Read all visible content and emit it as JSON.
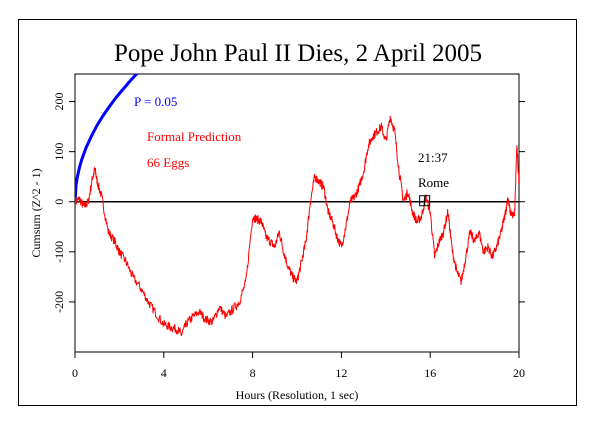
{
  "chart_data": {
    "type": "line",
    "title": "Pope John Paul II Dies, 2 April 2005",
    "xlabel": "Hours (Resolution, 1 sec)",
    "ylabel": "Cumsum (Z^2 - 1)",
    "xlim": [
      0,
      20
    ],
    "ylim": [
      -300,
      255
    ],
    "xticks": [
      "0",
      "4",
      "8",
      "12",
      "16",
      "20"
    ],
    "yticks": [
      "-200",
      "-100",
      "0",
      "100",
      "200"
    ],
    "grid": false,
    "colors": {
      "cumsum": "#ff0000",
      "envelope": "#0000ff",
      "baseline": "#000000"
    },
    "series": [
      {
        "name": "Cumsum",
        "x": [
          0,
          0.2,
          0.4,
          0.6,
          0.8,
          0.9,
          1.0,
          1.2,
          1.5,
          1.8,
          2.0,
          2.3,
          2.6,
          3.0,
          3.3,
          3.6,
          4.0,
          4.3,
          4.6,
          4.8,
          5.0,
          5.3,
          5.6,
          5.9,
          6.2,
          6.5,
          6.8,
          7.1,
          7.4,
          7.7,
          8.0,
          8.2,
          8.4,
          8.6,
          8.8,
          9.0,
          9.2,
          9.4,
          9.6,
          9.8,
          10.0,
          10.2,
          10.4,
          10.6,
          10.8,
          11.0,
          11.2,
          11.4,
          11.6,
          11.8,
          12.0,
          12.2,
          12.4,
          12.6,
          12.8,
          13.0,
          13.2,
          13.4,
          13.6,
          13.8,
          14.0,
          14.2,
          14.4,
          14.6,
          14.8,
          15.0,
          15.2,
          15.4,
          15.6,
          15.8,
          16.0,
          16.2,
          16.4,
          16.6,
          16.8,
          17.0,
          17.2,
          17.4,
          17.6,
          17.8,
          18.0,
          18.2,
          18.4,
          18.6,
          18.8,
          19.0,
          19.2,
          19.4,
          19.5,
          19.6,
          19.8,
          19.9,
          20.0
        ],
        "y": [
          0,
          5,
          -10,
          0,
          50,
          65,
          40,
          10,
          -60,
          -80,
          -100,
          -120,
          -150,
          -175,
          -200,
          -220,
          -245,
          -250,
          -255,
          -265,
          -245,
          -230,
          -220,
          -235,
          -240,
          -210,
          -230,
          -215,
          -200,
          -160,
          -30,
          -35,
          -40,
          -70,
          -80,
          -90,
          -60,
          -100,
          -130,
          -150,
          -160,
          -120,
          -80,
          0,
          50,
          40,
          30,
          -20,
          -40,
          -70,
          -90,
          -50,
          0,
          10,
          30,
          60,
          110,
          130,
          140,
          150,
          120,
          170,
          140,
          60,
          0,
          20,
          -20,
          -40,
          -30,
          10,
          -20,
          -110,
          -80,
          -60,
          -20,
          -100,
          -140,
          -160,
          -110,
          -60,
          -80,
          -60,
          -100,
          -90,
          -110,
          -90,
          -60,
          -20,
          10,
          -20,
          -30,
          110,
          40
        ]
      },
      {
        "name": "P = 0.05",
        "x": [
          0,
          0.05,
          0.1,
          0.2,
          0.3,
          0.5,
          0.75,
          1.0,
          1.25,
          1.5,
          1.75,
          2.0,
          2.25,
          2.5,
          2.75,
          3.0,
          3.25
        ],
        "y": [
          0,
          34,
          48,
          68,
          84,
          108,
          132,
          153,
          171,
          187,
          202,
          216,
          229,
          242,
          254,
          264,
          275
        ]
      }
    ],
    "annotations": {
      "envelope_label": "P = 0.05",
      "prediction": "Formal Prediction",
      "eggs": "66 Eggs",
      "time": "21:37",
      "place": "Rome",
      "marker": {
        "x": 15.75,
        "y": 0
      }
    }
  }
}
